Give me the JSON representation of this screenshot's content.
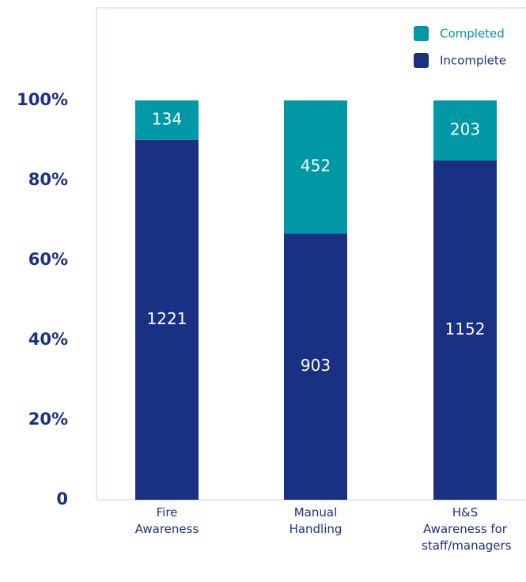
{
  "chart_data": {
    "type": "bar",
    "stacking": "percent",
    "categories": [
      "Fire Awareness",
      "Manual Handling",
      "H&S Awareness for staff/managers"
    ],
    "series": [
      {
        "name": "Completed",
        "color": "#0097a7",
        "values": [
          134,
          452,
          203
        ]
      },
      {
        "name": "Incomplete",
        "color": "#1a3183",
        "values": [
          1221,
          903,
          1152
        ]
      }
    ],
    "ylim": [
      0,
      100
    ],
    "yticks": [
      0,
      {
        "value": 20,
        "label": "20%"
      },
      {
        "value": 40,
        "label": "40%"
      },
      {
        "value": 60,
        "label": "60%"
      },
      {
        "value": 80,
        "label": "80%"
      },
      {
        "value": 100,
        "label": "100%"
      }
    ],
    "legend": "top-right",
    "grid": false
  }
}
